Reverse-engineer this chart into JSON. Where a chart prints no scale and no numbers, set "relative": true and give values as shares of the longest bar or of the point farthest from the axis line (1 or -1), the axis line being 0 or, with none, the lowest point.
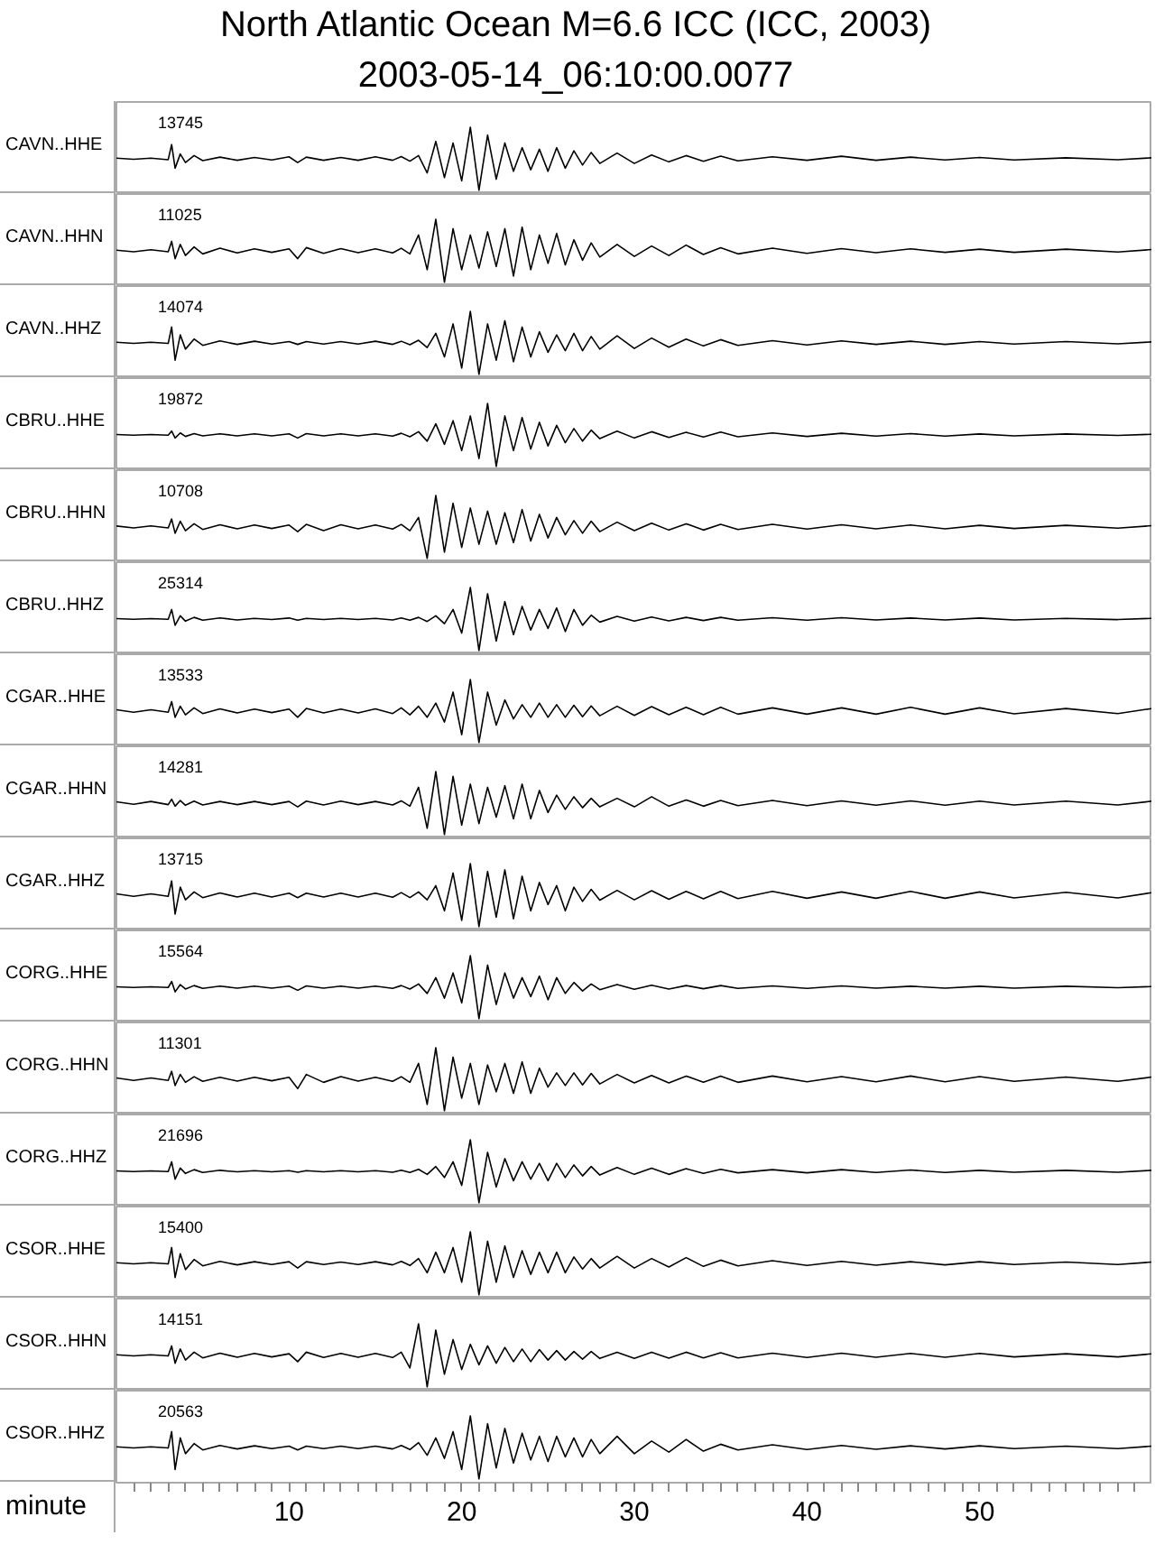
{
  "chart_data": [
    {
      "type": "line",
      "title": "North Atlantic Ocean M=6.6 ICC (ICC, 2003)",
      "subtitle": "2003-05-14_06:10:00.0077",
      "ylabel": "CAVN..HHE",
      "annotations": [
        "13745"
      ],
      "relative": true,
      "color": "#000000",
      "xlim": [
        0,
        60
      ],
      "tick_labels": false,
      "x": [
        0,
        1,
        2,
        3,
        3.2,
        3.4,
        3.7,
        4,
        4.5,
        5,
        6,
        7,
        8,
        9,
        10,
        10.5,
        11,
        12,
        13,
        14,
        15,
        16,
        16.5,
        17,
        17.5,
        18,
        18.5,
        19,
        19.5,
        20,
        20.5,
        21,
        21.5,
        22,
        22.5,
        23,
        23.5,
        24,
        24.5,
        25,
        25.5,
        26,
        26.5,
        27,
        27.5,
        28,
        29,
        30,
        31,
        32,
        33,
        34,
        35,
        36,
        38,
        40,
        42,
        44,
        46,
        48,
        50,
        52,
        55,
        58,
        60
      ],
      "values": [
        0.51,
        0.49,
        0.51,
        0.485,
        0.725,
        0.35,
        0.575,
        0.44,
        0.55,
        0.47,
        0.525,
        0.475,
        0.52,
        0.48,
        0.53,
        0.44,
        0.525,
        0.475,
        0.52,
        0.475,
        0.53,
        0.475,
        0.535,
        0.46,
        0.55,
        0.275,
        0.775,
        0.2,
        0.75,
        0.15,
        1,
        0,
        0.875,
        0.175,
        0.75,
        0.3,
        0.675,
        0.325,
        0.65,
        0.3,
        0.675,
        0.35,
        0.625,
        0.4,
        0.6,
        0.425,
        0.59,
        0.425,
        0.56,
        0.45,
        0.55,
        0.46,
        0.54,
        0.465,
        0.53,
        0.475,
        0.54,
        0.475,
        0.525,
        0.48,
        0.52,
        0.48,
        0.515,
        0.485,
        0.515
      ]
    },
    {
      "type": "line",
      "ylabel": "CAVN..HHN",
      "annotations": [
        "11025"
      ],
      "relative": true,
      "color": "#000000",
      "xlim": [
        0,
        60
      ],
      "tick_labels": false,
      "x": [
        0,
        1,
        2,
        3,
        3.2,
        3.4,
        3.7,
        4,
        4.5,
        5,
        6,
        7,
        8,
        9,
        10,
        10.5,
        11,
        12,
        13,
        14,
        15,
        16,
        16.5,
        17,
        17.5,
        18,
        18.5,
        19,
        19.5,
        20,
        20.5,
        21,
        21.5,
        22,
        22.5,
        23,
        23.5,
        24,
        24.5,
        25,
        25.5,
        26,
        26.5,
        27,
        27.5,
        28,
        29,
        30,
        31,
        32,
        33,
        34,
        35,
        36,
        38,
        40,
        42,
        44,
        46,
        48,
        50,
        52,
        55,
        58,
        60
      ],
      "values": [
        0.51,
        0.485,
        0.515,
        0.485,
        0.65,
        0.375,
        0.6,
        0.425,
        0.56,
        0.45,
        0.54,
        0.465,
        0.53,
        0.475,
        0.53,
        0.375,
        0.55,
        0.46,
        0.535,
        0.47,
        0.53,
        0.465,
        0.54,
        0.45,
        0.75,
        0.2,
        1,
        0,
        0.85,
        0.2,
        0.75,
        0.225,
        0.8,
        0.25,
        0.85,
        0.1,
        0.875,
        0.2,
        0.75,
        0.3,
        0.775,
        0.275,
        0.675,
        0.35,
        0.625,
        0.4,
        0.6,
        0.41,
        0.575,
        0.425,
        0.59,
        0.44,
        0.55,
        0.45,
        0.54,
        0.46,
        0.535,
        0.47,
        0.53,
        0.475,
        0.525,
        0.475,
        0.525,
        0.48,
        0.52
      ]
    },
    {
      "type": "line",
      "ylabel": "CAVN..HHZ",
      "annotations": [
        "14074"
      ],
      "relative": true,
      "color": "#000000",
      "xlim": [
        0,
        60
      ],
      "tick_labels": false,
      "x": [
        0,
        1,
        2,
        3,
        3.2,
        3.4,
        3.7,
        4,
        4.5,
        5,
        6,
        7,
        8,
        9,
        10,
        10.5,
        11,
        12,
        13,
        14,
        15,
        16,
        16.5,
        17,
        17.5,
        18,
        18.5,
        19,
        19.5,
        20,
        20.5,
        21,
        21.5,
        22,
        22.5,
        23,
        23.5,
        24,
        24.5,
        25,
        25.5,
        26,
        26.5,
        27,
        27.5,
        28,
        29,
        30,
        31,
        32,
        33,
        34,
        35,
        36,
        38,
        40,
        42,
        44,
        46,
        48,
        50,
        52,
        55,
        58,
        60
      ],
      "values": [
        0.51,
        0.49,
        0.51,
        0.49,
        0.75,
        0.225,
        0.625,
        0.4,
        0.56,
        0.46,
        0.53,
        0.475,
        0.525,
        0.48,
        0.52,
        0.475,
        0.52,
        0.48,
        0.52,
        0.48,
        0.525,
        0.475,
        0.525,
        0.47,
        0.54,
        0.425,
        0.65,
        0.275,
        0.8,
        0.1,
        1,
        0,
        0.8,
        0.225,
        0.85,
        0.2,
        0.75,
        0.275,
        0.675,
        0.35,
        0.625,
        0.375,
        0.65,
        0.375,
        0.6,
        0.4,
        0.61,
        0.41,
        0.575,
        0.43,
        0.56,
        0.45,
        0.55,
        0.46,
        0.535,
        0.465,
        0.53,
        0.475,
        0.525,
        0.475,
        0.52,
        0.48,
        0.52,
        0.485,
        0.515
      ]
    },
    {
      "type": "line",
      "ylabel": "CBRU..HHE",
      "annotations": [
        "19872"
      ],
      "relative": true,
      "color": "#000000",
      "xlim": [
        0,
        60
      ],
      "tick_labels": false,
      "x": [
        0,
        1,
        2,
        3,
        3.2,
        3.4,
        3.7,
        4,
        4.5,
        5,
        6,
        7,
        8,
        9,
        10,
        10.5,
        11,
        12,
        13,
        14,
        15,
        16,
        16.5,
        17,
        17.5,
        18,
        18.5,
        19,
        19.5,
        20,
        20.5,
        21,
        21.5,
        22,
        22.5,
        23,
        23.5,
        24,
        24.5,
        25,
        25.5,
        26,
        26.5,
        27,
        27.5,
        28,
        29,
        30,
        31,
        32,
        33,
        34,
        35,
        36,
        38,
        40,
        42,
        44,
        46,
        48,
        50,
        52,
        55,
        58,
        60
      ],
      "values": [
        0.505,
        0.495,
        0.505,
        0.495,
        0.56,
        0.45,
        0.53,
        0.475,
        0.52,
        0.485,
        0.515,
        0.485,
        0.515,
        0.485,
        0.515,
        0.45,
        0.52,
        0.485,
        0.515,
        0.485,
        0.515,
        0.48,
        0.525,
        0.47,
        0.55,
        0.4,
        0.675,
        0.35,
        0.725,
        0.25,
        0.8,
        0.125,
        1,
        0,
        0.8,
        0.25,
        0.775,
        0.275,
        0.7,
        0.325,
        0.65,
        0.375,
        0.6,
        0.4,
        0.575,
        0.44,
        0.56,
        0.45,
        0.55,
        0.46,
        0.54,
        0.465,
        0.545,
        0.47,
        0.53,
        0.475,
        0.525,
        0.48,
        0.52,
        0.48,
        0.515,
        0.485,
        0.515,
        0.49,
        0.51
      ]
    },
    {
      "type": "line",
      "ylabel": "CBRU..HHN",
      "annotations": [
        "10708"
      ],
      "relative": true,
      "color": "#000000",
      "xlim": [
        0,
        60
      ],
      "tick_labels": false,
      "x": [
        0,
        1,
        2,
        3,
        3.2,
        3.4,
        3.7,
        4,
        4.5,
        5,
        6,
        7,
        8,
        9,
        10,
        10.5,
        11,
        12,
        13,
        14,
        15,
        16,
        16.5,
        17,
        17.5,
        18,
        18.5,
        19,
        19.5,
        20,
        20.5,
        21,
        21.5,
        22,
        22.5,
        23,
        23.5,
        24,
        24.5,
        25,
        25.5,
        26,
        26.5,
        27,
        27.5,
        28,
        29,
        30,
        31,
        32,
        33,
        34,
        35,
        36,
        38,
        40,
        42,
        44,
        46,
        48,
        50,
        52,
        55,
        58,
        60
      ],
      "values": [
        0.515,
        0.485,
        0.515,
        0.485,
        0.625,
        0.4,
        0.59,
        0.44,
        0.55,
        0.46,
        0.535,
        0.47,
        0.53,
        0.475,
        0.53,
        0.425,
        0.54,
        0.44,
        0.535,
        0.47,
        0.53,
        0.465,
        0.54,
        0.44,
        0.65,
        0,
        1,
        0.1,
        0.875,
        0.175,
        0.8,
        0.225,
        0.75,
        0.225,
        0.725,
        0.25,
        0.775,
        0.275,
        0.7,
        0.325,
        0.65,
        0.375,
        0.6,
        0.4,
        0.59,
        0.425,
        0.575,
        0.44,
        0.56,
        0.45,
        0.55,
        0.45,
        0.54,
        0.46,
        0.54,
        0.465,
        0.535,
        0.47,
        0.53,
        0.47,
        0.525,
        0.475,
        0.525,
        0.48,
        0.52
      ]
    },
    {
      "type": "line",
      "ylabel": "CBRU..HHZ",
      "annotations": [
        "25314"
      ],
      "relative": true,
      "color": "#000000",
      "xlim": [
        0,
        60
      ],
      "tick_labels": false,
      "x": [
        0,
        1,
        2,
        3,
        3.2,
        3.4,
        3.7,
        4,
        4.5,
        5,
        6,
        7,
        8,
        9,
        10,
        10.5,
        11,
        12,
        13,
        14,
        15,
        16,
        16.5,
        17,
        17.5,
        18,
        18.5,
        19,
        19.5,
        20,
        20.5,
        21,
        21.5,
        22,
        22.5,
        23,
        23.5,
        24,
        24.5,
        25,
        25.5,
        26,
        26.5,
        27,
        27.5,
        28,
        29,
        30,
        31,
        32,
        33,
        34,
        35,
        36,
        38,
        40,
        42,
        44,
        46,
        48,
        50,
        52,
        55,
        58,
        60
      ],
      "values": [
        0.505,
        0.495,
        0.505,
        0.495,
        0.65,
        0.4,
        0.55,
        0.465,
        0.525,
        0.48,
        0.515,
        0.485,
        0.51,
        0.49,
        0.515,
        0.48,
        0.51,
        0.49,
        0.51,
        0.49,
        0.51,
        0.485,
        0.515,
        0.48,
        0.525,
        0.46,
        0.55,
        0.425,
        0.65,
        0.275,
        1,
        0,
        0.9,
        0.15,
        0.775,
        0.25,
        0.7,
        0.325,
        0.65,
        0.35,
        0.675,
        0.3,
        0.65,
        0.4,
        0.56,
        0.45,
        0.54,
        0.465,
        0.53,
        0.47,
        0.525,
        0.475,
        0.525,
        0.48,
        0.52,
        0.48,
        0.52,
        0.485,
        0.515,
        0.485,
        0.515,
        0.485,
        0.51,
        0.49,
        0.51
      ]
    },
    {
      "type": "line",
      "ylabel": "CGAR..HHE",
      "annotations": [
        "13533"
      ],
      "relative": true,
      "color": "#000000",
      "xlim": [
        0,
        60
      ],
      "tick_labels": false,
      "x": [
        0,
        1,
        2,
        3,
        3.2,
        3.4,
        3.7,
        4,
        4.5,
        5,
        6,
        7,
        8,
        9,
        10,
        10.5,
        11,
        12,
        13,
        14,
        15,
        16,
        16.5,
        17,
        17.5,
        18,
        18.5,
        19,
        19.5,
        20,
        20.5,
        21,
        21.5,
        22,
        22.5,
        23,
        23.5,
        24,
        24.5,
        25,
        25.5,
        26,
        26.5,
        27,
        27.5,
        28,
        29,
        30,
        31,
        32,
        33,
        34,
        35,
        36,
        38,
        40,
        42,
        44,
        46,
        48,
        50,
        52,
        55,
        58,
        60
      ],
      "values": [
        0.52,
        0.48,
        0.52,
        0.48,
        0.65,
        0.4,
        0.575,
        0.44,
        0.55,
        0.46,
        0.535,
        0.47,
        0.53,
        0.475,
        0.53,
        0.4,
        0.54,
        0.47,
        0.53,
        0.47,
        0.535,
        0.46,
        0.55,
        0.44,
        0.575,
        0.4,
        0.625,
        0.325,
        0.8,
        0.125,
        1,
        0,
        0.8,
        0.275,
        0.675,
        0.375,
        0.6,
        0.4,
        0.625,
        0.4,
        0.6,
        0.4,
        0.59,
        0.41,
        0.58,
        0.425,
        0.575,
        0.43,
        0.57,
        0.44,
        0.56,
        0.44,
        0.56,
        0.45,
        0.55,
        0.45,
        0.55,
        0.45,
        0.56,
        0.45,
        0.55,
        0.455,
        0.54,
        0.46,
        0.54
      ]
    },
    {
      "type": "line",
      "ylabel": "CGAR..HHN",
      "annotations": [
        "14281"
      ],
      "relative": true,
      "color": "#000000",
      "xlim": [
        0,
        60
      ],
      "tick_labels": false,
      "x": [
        0,
        1,
        2,
        3,
        3.2,
        3.4,
        3.7,
        4,
        4.5,
        5,
        6,
        7,
        8,
        9,
        10,
        10.5,
        11,
        12,
        13,
        14,
        15,
        16,
        16.5,
        17,
        17.5,
        18,
        18.5,
        19,
        19.5,
        20,
        20.5,
        21,
        21.5,
        22,
        22.5,
        23,
        23.5,
        24,
        24.5,
        25,
        25.5,
        26,
        26.5,
        27,
        27.5,
        28,
        29,
        30,
        31,
        32,
        33,
        34,
        35,
        36,
        38,
        40,
        42,
        44,
        46,
        48,
        50,
        52,
        55,
        58,
        60
      ],
      "values": [
        0.52,
        0.48,
        0.525,
        0.475,
        0.56,
        0.45,
        0.54,
        0.465,
        0.53,
        0.47,
        0.525,
        0.475,
        0.525,
        0.475,
        0.525,
        0.44,
        0.53,
        0.47,
        0.53,
        0.475,
        0.525,
        0.47,
        0.535,
        0.45,
        0.75,
        0.1,
        1,
        0,
        0.925,
        0.15,
        0.8,
        0.175,
        0.75,
        0.275,
        0.775,
        0.25,
        0.8,
        0.25,
        0.7,
        0.35,
        0.625,
        0.4,
        0.6,
        0.425,
        0.575,
        0.44,
        0.575,
        0.44,
        0.6,
        0.45,
        0.55,
        0.45,
        0.54,
        0.46,
        0.54,
        0.46,
        0.535,
        0.465,
        0.535,
        0.465,
        0.53,
        0.47,
        0.53,
        0.47,
        0.53
      ]
    },
    {
      "type": "line",
      "ylabel": "CGAR..HHZ",
      "annotations": [
        "13715"
      ],
      "relative": true,
      "color": "#000000",
      "xlim": [
        0,
        60
      ],
      "tick_labels": false,
      "x": [
        0,
        1,
        2,
        3,
        3.2,
        3.4,
        3.7,
        4,
        4.5,
        5,
        6,
        7,
        8,
        9,
        10,
        10.5,
        11,
        12,
        13,
        14,
        15,
        16,
        16.5,
        17,
        17.5,
        18,
        18.5,
        19,
        19.5,
        20,
        20.5,
        21,
        21.5,
        22,
        22.5,
        23,
        23.5,
        24,
        24.5,
        25,
        25.5,
        26,
        26.5,
        27,
        27.5,
        28,
        29,
        30,
        31,
        32,
        33,
        34,
        35,
        36,
        38,
        40,
        42,
        44,
        46,
        48,
        50,
        52,
        55,
        58,
        60
      ],
      "values": [
        0.52,
        0.48,
        0.52,
        0.48,
        0.725,
        0.2,
        0.625,
        0.425,
        0.55,
        0.46,
        0.535,
        0.47,
        0.53,
        0.47,
        0.53,
        0.46,
        0.53,
        0.47,
        0.53,
        0.47,
        0.53,
        0.465,
        0.54,
        0.46,
        0.55,
        0.425,
        0.65,
        0.25,
        0.85,
        0.1,
        1,
        0,
        0.875,
        0.15,
        0.9,
        0.125,
        0.8,
        0.25,
        0.7,
        0.35,
        0.65,
        0.25,
        0.625,
        0.4,
        0.59,
        0.42,
        0.575,
        0.425,
        0.57,
        0.435,
        0.56,
        0.44,
        0.56,
        0.445,
        0.56,
        0.45,
        0.55,
        0.45,
        0.56,
        0.45,
        0.55,
        0.455,
        0.545,
        0.455,
        0.54
      ]
    },
    {
      "type": "line",
      "ylabel": "CORG..HHE",
      "annotations": [
        "15564"
      ],
      "relative": true,
      "color": "#000000",
      "xlim": [
        0,
        60
      ],
      "tick_labels": false,
      "x": [
        0,
        1,
        2,
        3,
        3.2,
        3.4,
        3.7,
        4,
        4.5,
        5,
        6,
        7,
        8,
        9,
        10,
        10.5,
        11,
        12,
        13,
        14,
        15,
        16,
        16.5,
        17,
        17.5,
        18,
        18.5,
        19,
        19.5,
        20,
        20.5,
        21,
        21.5,
        22,
        22.5,
        23,
        23.5,
        24,
        24.5,
        25,
        25.5,
        26,
        26.5,
        27,
        27.5,
        28,
        29,
        30,
        31,
        32,
        33,
        34,
        35,
        36,
        38,
        40,
        42,
        44,
        46,
        48,
        50,
        52,
        55,
        58,
        60
      ],
      "values": [
        0.505,
        0.495,
        0.505,
        0.495,
        0.59,
        0.425,
        0.54,
        0.47,
        0.525,
        0.48,
        0.515,
        0.485,
        0.515,
        0.485,
        0.515,
        0.45,
        0.52,
        0.485,
        0.515,
        0.485,
        0.515,
        0.48,
        0.525,
        0.47,
        0.55,
        0.4,
        0.65,
        0.325,
        0.725,
        0.25,
        1,
        0,
        0.85,
        0.225,
        0.725,
        0.325,
        0.65,
        0.35,
        0.675,
        0.3,
        0.65,
        0.4,
        0.575,
        0.44,
        0.55,
        0.46,
        0.54,
        0.465,
        0.53,
        0.47,
        0.525,
        0.475,
        0.525,
        0.48,
        0.52,
        0.48,
        0.52,
        0.485,
        0.515,
        0.485,
        0.515,
        0.485,
        0.515,
        0.49,
        0.51
      ]
    },
    {
      "type": "line",
      "ylabel": "CORG..HHN",
      "annotations": [
        "11301"
      ],
      "relative": true,
      "color": "#000000",
      "xlim": [
        0,
        60
      ],
      "tick_labels": false,
      "x": [
        0,
        1,
        2,
        3,
        3.2,
        3.4,
        3.7,
        4,
        4.5,
        5,
        6,
        7,
        8,
        9,
        10,
        10.5,
        11,
        12,
        13,
        14,
        15,
        16,
        16.5,
        17,
        17.5,
        18,
        18.5,
        19,
        19.5,
        20,
        20.5,
        21,
        21.5,
        22,
        22.5,
        23,
        23.5,
        24,
        24.5,
        25,
        25.5,
        26,
        26.5,
        27,
        27.5,
        28,
        29,
        30,
        31,
        32,
        33,
        34,
        35,
        36,
        38,
        40,
        42,
        44,
        46,
        48,
        50,
        52,
        55,
        58,
        60
      ],
      "values": [
        0.52,
        0.48,
        0.52,
        0.48,
        0.625,
        0.4,
        0.575,
        0.45,
        0.54,
        0.465,
        0.53,
        0.47,
        0.53,
        0.475,
        0.53,
        0.35,
        0.575,
        0.45,
        0.54,
        0.47,
        0.53,
        0.465,
        0.54,
        0.45,
        0.75,
        0.1,
        1,
        0,
        0.85,
        0.2,
        0.75,
        0.1,
        0.725,
        0.3,
        0.75,
        0.275,
        0.775,
        0.275,
        0.675,
        0.375,
        0.6,
        0.4,
        0.6,
        0.41,
        0.59,
        0.425,
        0.575,
        0.44,
        0.56,
        0.44,
        0.55,
        0.45,
        0.55,
        0.45,
        0.55,
        0.46,
        0.54,
        0.46,
        0.55,
        0.46,
        0.54,
        0.465,
        0.535,
        0.465,
        0.535
      ]
    },
    {
      "type": "line",
      "ylabel": "CORG..HHZ",
      "annotations": [
        "21696"
      ],
      "relative": true,
      "color": "#000000",
      "xlim": [
        0,
        60
      ],
      "tick_labels": false,
      "x": [
        0,
        1,
        2,
        3,
        3.2,
        3.4,
        3.7,
        4,
        4.5,
        5,
        6,
        7,
        8,
        9,
        10,
        10.5,
        11,
        12,
        13,
        14,
        15,
        16,
        16.5,
        17,
        17.5,
        18,
        18.5,
        19,
        19.5,
        20,
        20.5,
        21,
        21.5,
        22,
        22.5,
        23,
        23.5,
        24,
        24.5,
        25,
        25.5,
        26,
        26.5,
        27,
        27.5,
        28,
        29,
        30,
        31,
        32,
        33,
        34,
        35,
        36,
        38,
        40,
        42,
        44,
        46,
        48,
        50,
        52,
        55,
        58,
        60
      ],
      "values": [
        0.505,
        0.495,
        0.505,
        0.495,
        0.65,
        0.375,
        0.55,
        0.465,
        0.525,
        0.48,
        0.515,
        0.49,
        0.51,
        0.49,
        0.51,
        0.485,
        0.51,
        0.49,
        0.51,
        0.49,
        0.51,
        0.485,
        0.515,
        0.48,
        0.53,
        0.45,
        0.575,
        0.4,
        0.65,
        0.275,
        1,
        0,
        0.8,
        0.25,
        0.7,
        0.35,
        0.65,
        0.375,
        0.625,
        0.35,
        0.625,
        0.4,
        0.6,
        0.425,
        0.575,
        0.44,
        0.56,
        0.45,
        0.55,
        0.45,
        0.54,
        0.465,
        0.53,
        0.475,
        0.525,
        0.475,
        0.525,
        0.48,
        0.52,
        0.48,
        0.515,
        0.485,
        0.515,
        0.485,
        0.515
      ]
    },
    {
      "type": "line",
      "ylabel": "CSOR..HHE",
      "annotations": [
        "15400"
      ],
      "relative": true,
      "color": "#000000",
      "xlim": [
        0,
        60
      ],
      "tick_labels": false,
      "x": [
        0,
        1,
        2,
        3,
        3.2,
        3.4,
        3.7,
        4,
        4.5,
        5,
        6,
        7,
        8,
        9,
        10,
        10.5,
        11,
        12,
        13,
        14,
        15,
        16,
        16.5,
        17,
        17.5,
        18,
        18.5,
        19,
        19.5,
        20,
        20.5,
        21,
        21.5,
        22,
        22.5,
        23,
        23.5,
        24,
        24.5,
        25,
        25.5,
        26,
        26.5,
        27,
        27.5,
        28,
        29,
        30,
        31,
        32,
        33,
        34,
        35,
        36,
        38,
        40,
        42,
        44,
        46,
        48,
        50,
        52,
        55,
        58,
        60
      ],
      "values": [
        0.51,
        0.49,
        0.51,
        0.49,
        0.75,
        0.275,
        0.65,
        0.4,
        0.56,
        0.46,
        0.53,
        0.475,
        0.525,
        0.48,
        0.525,
        0.425,
        0.525,
        0.48,
        0.52,
        0.48,
        0.525,
        0.475,
        0.53,
        0.465,
        0.575,
        0.35,
        0.675,
        0.35,
        0.75,
        0.2,
        1,
        0,
        0.85,
        0.2,
        0.775,
        0.275,
        0.7,
        0.325,
        0.675,
        0.35,
        0.675,
        0.35,
        0.6,
        0.41,
        0.575,
        0.425,
        0.61,
        0.425,
        0.575,
        0.44,
        0.59,
        0.45,
        0.55,
        0.46,
        0.54,
        0.465,
        0.53,
        0.47,
        0.525,
        0.475,
        0.525,
        0.48,
        0.52,
        0.48,
        0.52
      ]
    },
    {
      "type": "line",
      "ylabel": "CSOR..HHN",
      "annotations": [
        "14151"
      ],
      "relative": true,
      "color": "#000000",
      "xlim": [
        0,
        60
      ],
      "tick_labels": false,
      "x": [
        0,
        1,
        2,
        3,
        3.2,
        3.4,
        3.7,
        4,
        4.5,
        5,
        6,
        7,
        8,
        9,
        10,
        10.5,
        11,
        12,
        13,
        14,
        15,
        16,
        16.5,
        17,
        17.5,
        18,
        18.5,
        19,
        19.5,
        20,
        20.5,
        21,
        21.5,
        22,
        22.5,
        23,
        23.5,
        24,
        24.5,
        25,
        25.5,
        26,
        26.5,
        27,
        27.5,
        28,
        29,
        30,
        31,
        32,
        33,
        34,
        35,
        36,
        38,
        40,
        42,
        44,
        46,
        48,
        50,
        52,
        55,
        58,
        60
      ],
      "values": [
        0.51,
        0.49,
        0.51,
        0.49,
        0.65,
        0.375,
        0.6,
        0.425,
        0.55,
        0.46,
        0.535,
        0.47,
        0.53,
        0.475,
        0.525,
        0.4,
        0.55,
        0.465,
        0.53,
        0.47,
        0.53,
        0.465,
        0.55,
        0.3,
        1,
        0,
        0.9,
        0.2,
        0.75,
        0.275,
        0.675,
        0.35,
        0.65,
        0.375,
        0.625,
        0.4,
        0.6,
        0.4,
        0.59,
        0.425,
        0.575,
        0.425,
        0.56,
        0.44,
        0.56,
        0.45,
        0.55,
        0.45,
        0.55,
        0.455,
        0.55,
        0.46,
        0.54,
        0.46,
        0.535,
        0.465,
        0.535,
        0.47,
        0.53,
        0.47,
        0.53,
        0.475,
        0.525,
        0.475,
        0.525
      ]
    },
    {
      "type": "line",
      "ylabel": "CSOR..HHZ",
      "annotations": [
        "20563"
      ],
      "relative": true,
      "color": "#000000",
      "xlim": [
        0,
        60
      ],
      "tick_labels": "x",
      "xlabel": "minute",
      "xticks": [
        {
          "value": 1,
          "label": null
        },
        {
          "value": 2,
          "label": null
        },
        {
          "value": 3,
          "label": null
        },
        {
          "value": 4,
          "label": null
        },
        {
          "value": 5,
          "label": null
        },
        {
          "value": 6,
          "label": null
        },
        {
          "value": 7,
          "label": null
        },
        {
          "value": 8,
          "label": null
        },
        {
          "value": 9,
          "label": null
        },
        10,
        {
          "value": 11,
          "label": null
        },
        {
          "value": 12,
          "label": null
        },
        {
          "value": 13,
          "label": null
        },
        {
          "value": 14,
          "label": null
        },
        {
          "value": 15,
          "label": null
        },
        {
          "value": 16,
          "label": null
        },
        {
          "value": 17,
          "label": null
        },
        {
          "value": 18,
          "label": null
        },
        {
          "value": 19,
          "label": null
        },
        20,
        {
          "value": 21,
          "label": null
        },
        {
          "value": 22,
          "label": null
        },
        {
          "value": 23,
          "label": null
        },
        {
          "value": 24,
          "label": null
        },
        {
          "value": 25,
          "label": null
        },
        {
          "value": 26,
          "label": null
        },
        {
          "value": 27,
          "label": null
        },
        {
          "value": 28,
          "label": null
        },
        {
          "value": 29,
          "label": null
        },
        30,
        {
          "value": 31,
          "label": null
        },
        {
          "value": 32,
          "label": null
        },
        {
          "value": 33,
          "label": null
        },
        {
          "value": 34,
          "label": null
        },
        {
          "value": 35,
          "label": null
        },
        {
          "value": 36,
          "label": null
        },
        {
          "value": 37,
          "label": null
        },
        {
          "value": 38,
          "label": null
        },
        {
          "value": 39,
          "label": null
        },
        40,
        {
          "value": 41,
          "label": null
        },
        {
          "value": 42,
          "label": null
        },
        {
          "value": 43,
          "label": null
        },
        {
          "value": 44,
          "label": null
        },
        {
          "value": 45,
          "label": null
        },
        {
          "value": 46,
          "label": null
        },
        {
          "value": 47,
          "label": null
        },
        {
          "value": 48,
          "label": null
        },
        {
          "value": 49,
          "label": null
        },
        50,
        {
          "value": 51,
          "label": null
        },
        {
          "value": 52,
          "label": null
        },
        {
          "value": 53,
          "label": null
        },
        {
          "value": 54,
          "label": null
        },
        {
          "value": 55,
          "label": null
        },
        {
          "value": 56,
          "label": null
        },
        {
          "value": 57,
          "label": null
        },
        {
          "value": 58,
          "label": null
        },
        {
          "value": 59,
          "label": null
        }
      ],
      "x": [
        0,
        1,
        2,
        3,
        3.2,
        3.4,
        3.7,
        4,
        4.5,
        5,
        6,
        7,
        8,
        9,
        10,
        10.5,
        11,
        12,
        13,
        14,
        15,
        16,
        16.5,
        17,
        17.5,
        18,
        18.5,
        19,
        19.5,
        20,
        20.5,
        21,
        21.5,
        22,
        22.5,
        23,
        23.5,
        24,
        24.5,
        25,
        25.5,
        26,
        26.5,
        27,
        27.5,
        28,
        29,
        30,
        31,
        32,
        33,
        34,
        35,
        36,
        38,
        40,
        42,
        44,
        46,
        48,
        50,
        52,
        55,
        58,
        60
      ],
      "values": [
        0.51,
        0.49,
        0.51,
        0.49,
        0.75,
        0.15,
        0.65,
        0.4,
        0.56,
        0.46,
        0.53,
        0.475,
        0.525,
        0.48,
        0.52,
        0.46,
        0.52,
        0.48,
        0.52,
        0.48,
        0.52,
        0.475,
        0.53,
        0.465,
        0.575,
        0.375,
        0.65,
        0.325,
        0.75,
        0.15,
        1,
        0,
        0.875,
        0.175,
        0.8,
        0.25,
        0.725,
        0.3,
        0.675,
        0.275,
        0.675,
        0.35,
        0.65,
        0.35,
        0.625,
        0.4,
        0.675,
        0.4,
        0.6,
        0.425,
        0.625,
        0.44,
        0.55,
        0.46,
        0.54,
        0.465,
        0.53,
        0.47,
        0.525,
        0.475,
        0.525,
        0.48,
        0.52,
        0.48,
        0.52
      ]
    }
  ]
}
